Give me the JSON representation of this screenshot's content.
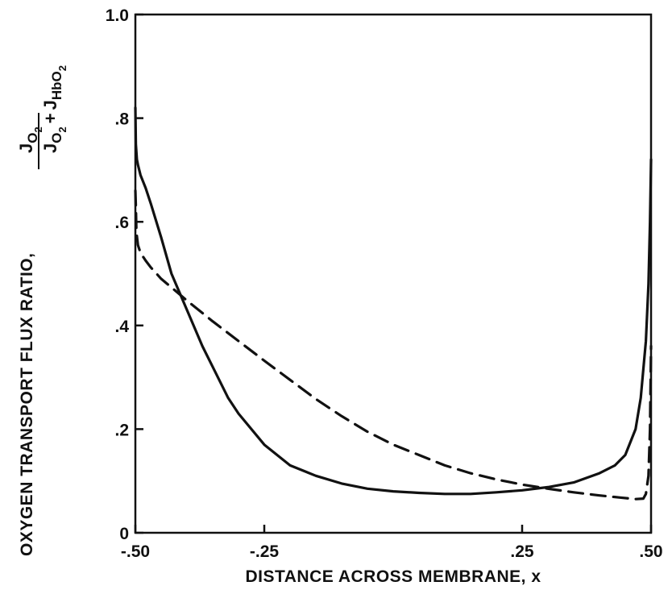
{
  "chart_data": {
    "type": "line",
    "title": "",
    "xlabel": "DISTANCE ACROSS MEMBRANE, x",
    "ylabel": {
      "prefix": "OXYGEN TRANSPORT FLUX RATIO,",
      "numerator": {
        "base": "J",
        "sub": "O",
        "subsub": "2"
      },
      "denominator": {
        "term1": {
          "base": "J",
          "sub": "O",
          "subsub": "2"
        },
        "plus": "+",
        "term2": {
          "base": "J",
          "sub": "HbO",
          "subsub": "2"
        }
      }
    },
    "xlim": [
      -0.5,
      0.5
    ],
    "ylim": [
      0,
      1.0
    ],
    "xticks": [
      {
        "value": -0.5,
        "label": "-.50"
      },
      {
        "value": -0.25,
        "label": "-.25"
      },
      {
        "value": 0.25,
        "label": ".25"
      },
      {
        "value": 0.5,
        "label": ".50"
      }
    ],
    "yticks": [
      {
        "value": 0,
        "label": "0"
      },
      {
        "value": 0.2,
        "label": ".2"
      },
      {
        "value": 0.4,
        "label": ".4"
      },
      {
        "value": 0.6,
        "label": ".6"
      },
      {
        "value": 0.8,
        "label": ".8"
      },
      {
        "value": 1.0,
        "label": "1.0"
      }
    ],
    "grid": false,
    "series": [
      {
        "style": "solid",
        "x": [
          -0.5,
          -0.499,
          -0.497,
          -0.495,
          -0.49,
          -0.48,
          -0.47,
          -0.45,
          -0.43,
          -0.4,
          -0.37,
          -0.35,
          -0.32,
          -0.3,
          -0.25,
          -0.2,
          -0.15,
          -0.1,
          -0.05,
          0.0,
          0.05,
          0.1,
          0.15,
          0.2,
          0.25,
          0.3,
          0.35,
          0.4,
          0.43,
          0.45,
          0.47,
          0.48,
          0.49,
          0.495,
          0.498,
          0.5
        ],
        "y": [
          0.82,
          0.75,
          0.72,
          0.71,
          0.69,
          0.665,
          0.635,
          0.57,
          0.5,
          0.43,
          0.36,
          0.32,
          0.26,
          0.23,
          0.17,
          0.13,
          0.11,
          0.095,
          0.085,
          0.08,
          0.077,
          0.075,
          0.075,
          0.078,
          0.082,
          0.088,
          0.097,
          0.115,
          0.13,
          0.15,
          0.2,
          0.26,
          0.37,
          0.48,
          0.6,
          0.72
        ]
      },
      {
        "style": "dashed",
        "x": [
          -0.5,
          -0.499,
          -0.498,
          -0.495,
          -0.49,
          -0.48,
          -0.47,
          -0.45,
          -0.42,
          -0.4,
          -0.35,
          -0.3,
          -0.25,
          -0.2,
          -0.15,
          -0.1,
          -0.05,
          0.0,
          0.05,
          0.1,
          0.15,
          0.2,
          0.25,
          0.3,
          0.35,
          0.4,
          0.44,
          0.47,
          0.485,
          0.49,
          0.495,
          0.498,
          0.5
        ],
        "y": [
          0.66,
          0.63,
          0.58,
          0.555,
          0.54,
          0.525,
          0.512,
          0.49,
          0.465,
          0.448,
          0.408,
          0.37,
          0.332,
          0.295,
          0.258,
          0.225,
          0.195,
          0.17,
          0.15,
          0.13,
          0.115,
          0.103,
          0.093,
          0.085,
          0.078,
          0.072,
          0.068,
          0.065,
          0.066,
          0.075,
          0.11,
          0.2,
          0.36
        ]
      }
    ]
  }
}
